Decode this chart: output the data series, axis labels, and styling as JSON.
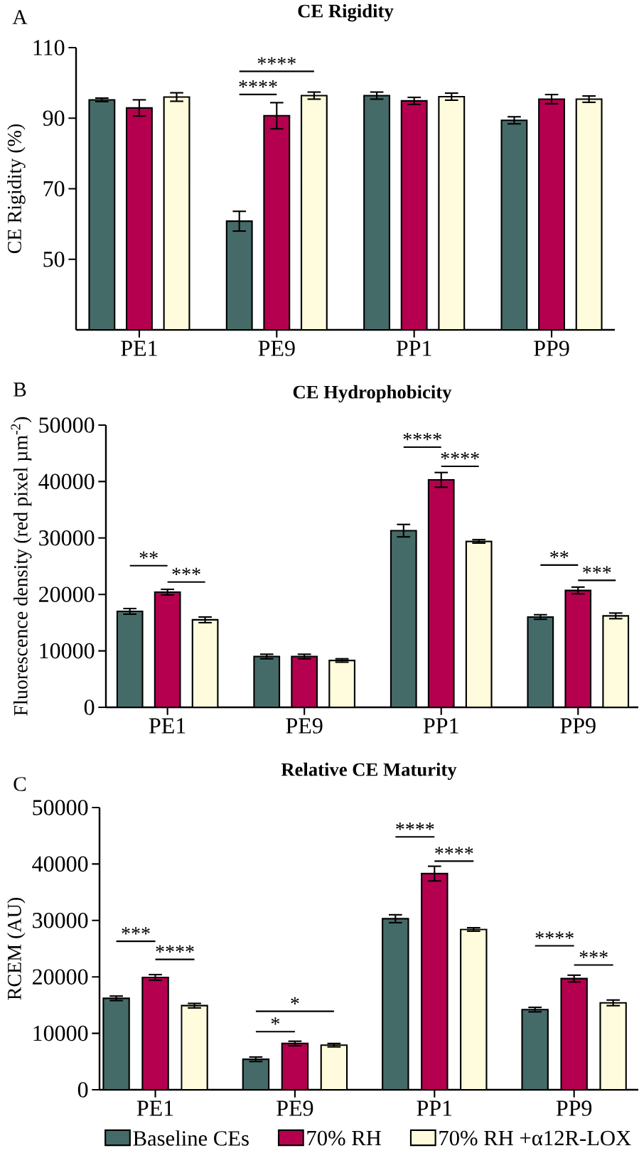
{
  "chart_data": [
    {
      "type": "bar",
      "title": "CE Rigidity",
      "ylabel": "CE  Rigidity (%)",
      "categories": [
        "PE1",
        "PE9",
        "PP1",
        "PP9"
      ],
      "ylim": [
        30,
        110
      ],
      "yticks": [
        50,
        70,
        90,
        110
      ],
      "series": [
        {
          "color": "#456b68",
          "values": [
            95.2,
            60.8,
            96.4,
            89.4
          ],
          "errors": [
            0.5,
            2.8,
            1.0,
            1.0
          ]
        },
        {
          "color": "#b5004f",
          "values": [
            92.9,
            90.7,
            94.9,
            95.4
          ],
          "errors": [
            2.3,
            3.7,
            1.0,
            1.3
          ]
        },
        {
          "color": "#fefcdc",
          "values": [
            96.0,
            96.4,
            96.1,
            95.4
          ],
          "errors": [
            1.2,
            1.0,
            1.0,
            0.9
          ]
        }
      ],
      "annotations": [
        "A",
        "****",
        "****"
      ]
    },
    {
      "type": "bar",
      "title": "CE Hydrophobicity",
      "ylabel": "Fluorescence density (red pixel µm$^{-2}$)",
      "categories": [
        "PE1",
        "PE9",
        "PP1",
        "PP9"
      ],
      "ylim": [
        0,
        50000
      ],
      "yticks": [
        0,
        10000,
        20000,
        30000,
        40000,
        50000
      ],
      "series": [
        {
          "color": "#456b68",
          "values": [
            17000,
            9000,
            31300,
            16000
          ],
          "errors": [
            500,
            400,
            1100,
            400
          ]
        },
        {
          "color": "#b5004f",
          "values": [
            20400,
            9000,
            40300,
            20700
          ],
          "errors": [
            500,
            400,
            1300,
            600
          ]
        },
        {
          "color": "#fefcdc",
          "values": [
            15500,
            8300,
            29400,
            16200
          ],
          "errors": [
            500,
            300,
            300,
            500
          ]
        }
      ],
      "annotations": [
        "B",
        "**",
        "***",
        "****",
        "****",
        "**",
        "***"
      ]
    },
    {
      "type": "bar",
      "title": "Relative CE Maturity",
      "ylabel": "RCEM (AU)",
      "categories": [
        "PE1",
        "PE9",
        "PP1",
        "PP9"
      ],
      "ylim": [
        0,
        50000
      ],
      "yticks": [
        0,
        10000,
        20000,
        30000,
        40000,
        50000
      ],
      "legend": "bottom",
      "series": [
        {
          "name": "Baseline CEs",
          "color": "#456b68",
          "values": [
            16200,
            5400,
            30300,
            14200
          ],
          "errors": [
            400,
            400,
            700,
            400
          ]
        },
        {
          "name": "70% RH",
          "color": "#b5004f",
          "values": [
            19900,
            8200,
            38300,
            19700
          ],
          "errors": [
            500,
            400,
            1300,
            600
          ]
        },
        {
          "name": "70% RH +α12R-LOX",
          "color": "#fefcdc",
          "values": [
            14900,
            7900,
            28400,
            15400
          ],
          "errors": [
            400,
            300,
            300,
            500
          ]
        }
      ],
      "annotations": [
        "C",
        "***",
        "****",
        "*",
        "*",
        "****",
        "****",
        "****",
        "***"
      ]
    }
  ]
}
